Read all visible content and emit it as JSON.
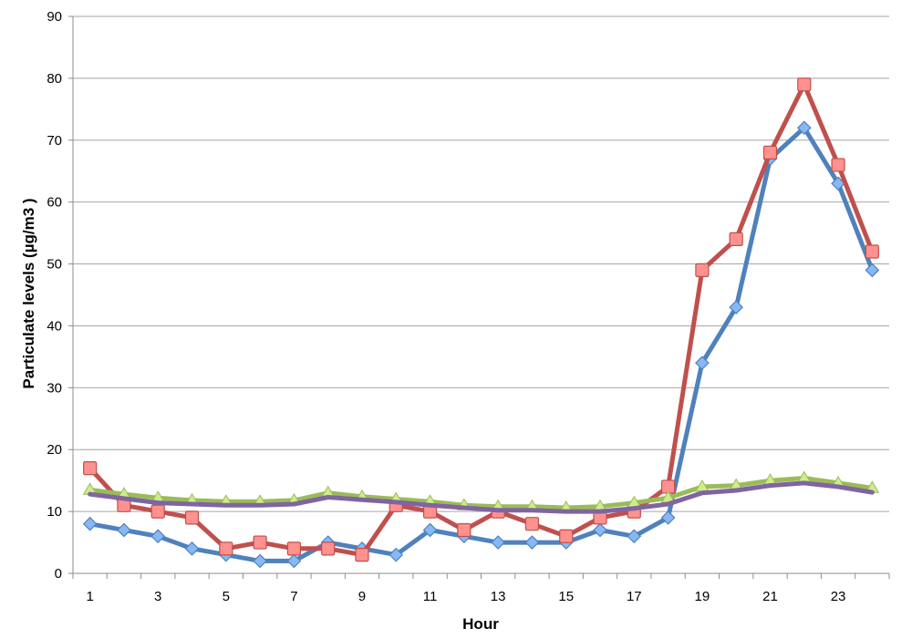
{
  "chart_data": {
    "type": "line",
    "title": "",
    "xlabel": "Hour",
    "ylabel": "Particulate levels (µg/m3 )",
    "ylim": [
      0,
      90
    ],
    "yticks": [
      0,
      10,
      20,
      30,
      40,
      50,
      60,
      70,
      80,
      90
    ],
    "x": [
      1,
      2,
      3,
      4,
      5,
      6,
      7,
      8,
      9,
      10,
      11,
      12,
      13,
      14,
      15,
      16,
      17,
      18,
      19,
      20,
      21,
      22,
      23,
      24
    ],
    "xtick_labels": [
      1,
      3,
      5,
      7,
      9,
      11,
      13,
      15,
      17,
      19,
      21,
      23
    ],
    "grid": "horizontal",
    "legend": "none",
    "series": [
      {
        "color": "#4f81bd",
        "marker": "diamond",
        "values": [
          8,
          7,
          6,
          4,
          3,
          2,
          2,
          5,
          4,
          3,
          7,
          6,
          5,
          5,
          5,
          7,
          6,
          9,
          34,
          43,
          67,
          72,
          63,
          49
        ]
      },
      {
        "color": "#c0504d",
        "marker": "square",
        "values": [
          17,
          11,
          10,
          9,
          4,
          5,
          4,
          4,
          3,
          11,
          10,
          7,
          10,
          8,
          6,
          9,
          10,
          14,
          49,
          54,
          68,
          79,
          66,
          52
        ]
      },
      {
        "color": "#9bbb59",
        "marker": "triangle",
        "values": [
          13.5,
          12.8,
          12.2,
          11.8,
          11.6,
          11.6,
          11.8,
          13,
          12.4,
          12,
          11.6,
          11,
          10.8,
          10.8,
          10.6,
          10.8,
          11.4,
          12.2,
          14,
          14.2,
          15,
          15.4,
          14.6,
          13.8
        ]
      },
      {
        "color": "#8064a2",
        "marker": "none",
        "values": [
          12.8,
          12.1,
          11.4,
          11.2,
          11,
          11,
          11.2,
          12.3,
          11.9,
          11.5,
          11,
          10.6,
          10.2,
          10.2,
          10,
          10,
          10.5,
          11.2,
          13,
          13.4,
          14.2,
          14.6,
          14,
          13.1
        ]
      }
    ]
  }
}
